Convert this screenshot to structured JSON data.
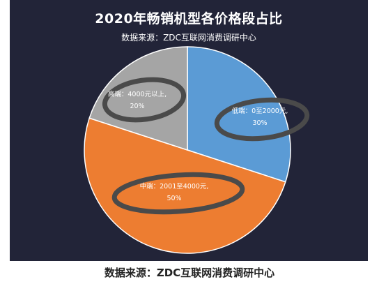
{
  "chart_data": {
    "type": "pie",
    "title": "2020年畅销机型各价格段占比",
    "subtitle": "数据来源：ZDC互联网消费调研中心",
    "slices": [
      {
        "line1": "低端：0至2000元,",
        "line2": "30%",
        "value": 30,
        "color": "#5b9bd5"
      },
      {
        "line1": "中端：2001至4000元,",
        "line2": "50%",
        "value": 50,
        "color": "#ed7d31"
      },
      {
        "line1": "高端：4000元以上,",
        "line2": "20%",
        "value": 20,
        "color": "#a5a5a5"
      }
    ]
  },
  "caption": "数据来源：ZDC互联网消费调研中心"
}
